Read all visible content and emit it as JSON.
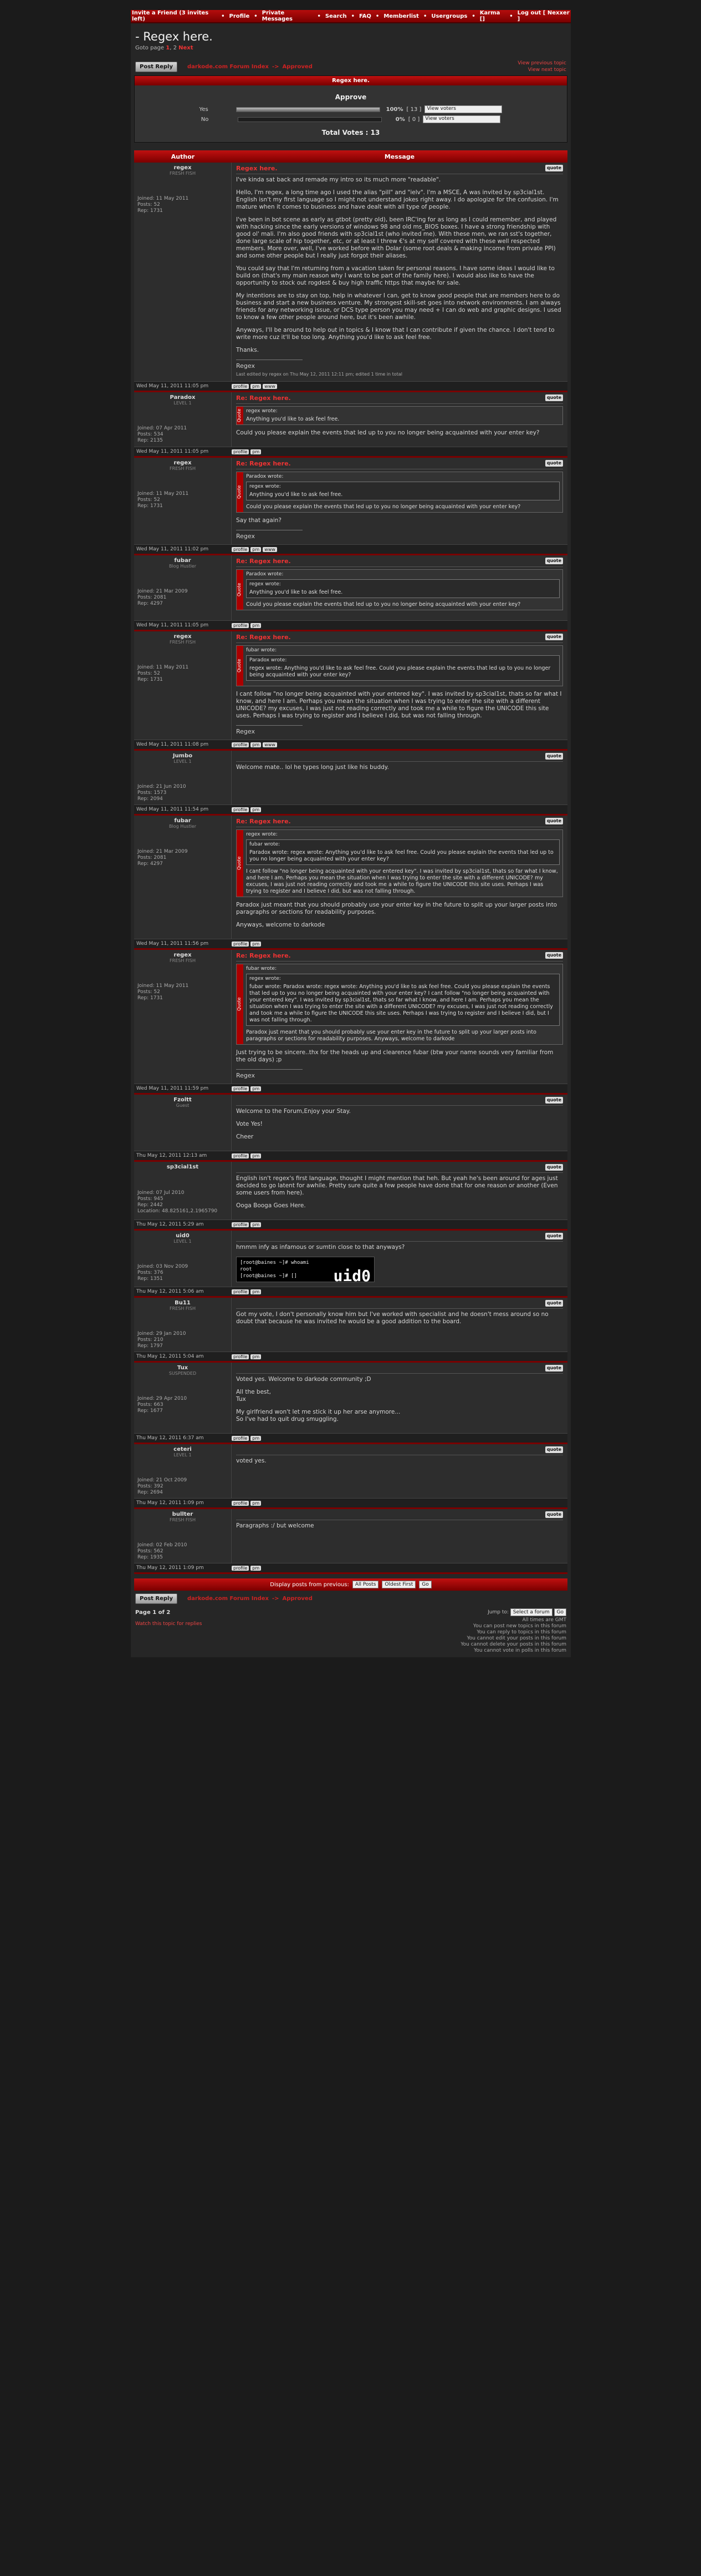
{
  "topbar": [
    "Invite a Friend (3 invites left)",
    "Profile",
    "Private Messages",
    "Search",
    "FAQ",
    "Memberlist",
    "Usergroups",
    "Karma []",
    "Log out [ Nexxer ]"
  ],
  "topic": {
    "title": "- Regex here.",
    "goto": "Goto page",
    "page1": "1",
    "sep": ",",
    "page2": "2",
    "next": "Next"
  },
  "nav": {
    "reply": "Post Reply",
    "crumb1": "darkode.com Forum Index",
    "arrow": "->",
    "crumb2": "Approved",
    "prev": "View previous topic",
    "nextt": "View next topic"
  },
  "poll": {
    "head": "Regex here.",
    "question": "Approve",
    "options": [
      {
        "label": "Yes",
        "fraction": 1.0,
        "pct": "100%",
        "count": "[ 13 ]",
        "view": "View voters"
      },
      {
        "label": "No",
        "fraction": 0,
        "pct": "0%",
        "count": "[ 0 ]",
        "view": "View voters"
      }
    ],
    "total": "Total Votes : 13"
  },
  "cols": {
    "author": "Author",
    "message": "Message"
  },
  "posts": [
    {
      "user": "regex",
      "rank": "FRESH FISH",
      "info": [
        "Joined: 11 May 2011",
        "Posts: 52",
        "Rep: 1731"
      ],
      "title": "Regex here.",
      "date": "Wed May 11, 2011 11:05 pm",
      "paras": [
        "I've kinda sat back and remade my intro so its much more \"readable\".",
        "Hello, I'm regex, a long time ago I used the alias \"pill\" and \"ielv\". I'm a MSCE, A was invited by sp3cial1st. English isn't my first language so I might not understand jokes right away. I do apologize for the confusion. I'm mature when it comes to business and have dealt with all type of people.",
        "I've been in bot scene as early as gtbot (pretty old), been IRC'ing for as long as I could remember, and played with hacking since the early versions of windows 98 and old ms_BIOS boxes. I have a strong friendship with good ol' mali. I'm also good friends with sp3cial1st (who invited me). With these men, we ran sst's together, done large scale of hip together, etc, or at least I threw €'s at my self covered with these well respected members. More over, well, I've worked before with Dolar (some root deals & making income from private PPI) and some other people but I really just forgot their aliases.",
        "You could say that I'm returning from a vacation taken for personal reasons. I have some ideas I would like to build on (that's my main reason why I want to be part of the family here). I would also like to have the opportunity to stock out rogdest & buy high traffic https that maybe for sale.",
        "My intentions are to stay on top, help in whatever I can, get to know good people that are members here to do business and start a new business venture. My strongest skill-set goes into network environments. I am always friends for any networking issue, or DCS type person you may need + I can do web and graphic designs. I used to know a few other people around here, but it's been awhile.",
        "Anyways, I'll be around to help out in topics & I know that I can contribute if given the chance. I don't tend to write more cuz it'll be too long. Anything you'd like to ask feel free.",
        "Thanks."
      ],
      "sig": "Regex",
      "edit": "Last edited by regex on Thu May 12, 2011 12:11 pm; edited 1 time in total"
    },
    {
      "user": "Paradox",
      "rank": "LEVEL 1",
      "info": [
        "Joined: 07 Apr 2011",
        "Posts: 534",
        "Rep: 2135"
      ],
      "title": "Re: Regex here.",
      "date": "Wed May 11, 2011 11:05 pm",
      "quote": {
        "auth": "regex wrote:",
        "text": "Anything you'd like to ask feel free."
      },
      "paras": [
        "Could you please explain the events that led up to you no longer being acquainted with your enter key?"
      ]
    },
    {
      "user": "regex",
      "rank": "FRESH FISH",
      "info": [
        "Joined: 11 May 2011",
        "Posts: 52",
        "Rep: 1731"
      ],
      "title": "Re: Regex here.",
      "date": "Wed May 11, 2011 11:02 pm",
      "quote": {
        "auth": "Paradox wrote:",
        "inner": {
          "auth": "regex wrote:",
          "text": "Anything you'd like to ask feel free."
        },
        "text": "Could you please explain the events that led up to you no longer being acquainted with your enter key?"
      },
      "paras": [
        "Say that again?"
      ],
      "sig": "Regex"
    },
    {
      "user": "fubar",
      "rank": "Blog Hustler",
      "info": [
        "Joined: 21 Mar 2009",
        "Posts: 2081",
        "Rep: 4297"
      ],
      "title": "Re: Regex here.",
      "date": "Wed May 11, 2011 11:05 pm",
      "quote": {
        "auth": "Paradox wrote:",
        "inner": {
          "auth": "regex wrote:",
          "text": "Anything you'd like to ask feel free."
        },
        "text": "Could you please explain the events that led up to you no longer being acquainted with your enter key?"
      },
      "paras": [
        ""
      ]
    },
    {
      "user": "regex",
      "rank": "FRESH FISH",
      "info": [
        "Joined: 11 May 2011",
        "Posts: 52",
        "Rep: 1731"
      ],
      "title": "Re: Regex here.",
      "date": "Wed May 11, 2011 11:08 pm",
      "quote": {
        "auth": "fubar wrote:",
        "inner": {
          "auth": "Paradox wrote:",
          "text": "regex wrote: Anything you'd like to ask feel free. Could you please explain the events that led up to you no longer being acquainted with your enter key?"
        },
        "text": ""
      },
      "paras": [
        "I cant follow \"no longer being acquainted with your entered key\". I was invited by sp3cial1st, thats so far what I know, and here I am. Perhaps you mean the situation when I was trying to enter the site with a different UNICODE? my excuses, I was just not reading correctly and took me a while to figure the UNICODE this site uses. Perhaps I was trying to register and I believe I did, but was not falling through."
      ],
      "sig": "Regex"
    },
    {
      "user": "Jumbo",
      "rank": "LEVEL 1",
      "info": [
        "Joined: 21 Jun 2010",
        "Posts: 1573",
        "Rep: 2094"
      ],
      "title": "",
      "date": "Wed May 11, 2011 11:54 pm",
      "paras": [
        "Welcome mate.. lol he types long just like his buddy."
      ]
    },
    {
      "user": "fubar",
      "rank": "Blog Hustler",
      "info": [
        "Joined: 21 Mar 2009",
        "Posts: 2081",
        "Rep: 4297"
      ],
      "title": "Re: Regex here.",
      "date": "Wed May 11, 2011 11:56 pm",
      "quote": {
        "auth": "regex wrote:",
        "inner": {
          "auth": "fubar wrote:",
          "text": "Paradox wrote: regex wrote: Anything you'd like to ask feel free. Could you please explain the events that led up to you no longer being acquainted with your enter key?"
        },
        "text": "I cant follow \"no longer being acquainted with your entered key\". I was invited by sp3cial1st, thats so far what I know, and here I am. Perhaps you mean the situation when I was trying to enter the site with a different UNICODE? my excuses, I was just not reading correctly and took me a while to figure the UNICODE this site uses. Perhaps I was trying to register and I believe I did, but was not falling through."
      },
      "paras": [
        "Paradox just meant that you should probably use your enter key in the future to split up your larger posts into paragraphs or sections for readability purposes.",
        "Anyways, welcome to darkode"
      ]
    },
    {
      "user": "regex",
      "rank": "FRESH FISH",
      "info": [
        "Joined: 11 May 2011",
        "Posts: 52",
        "Rep: 1731"
      ],
      "title": "Re: Regex here.",
      "date": "Wed May 11, 2011 11:59 pm",
      "quote": {
        "auth": "fubar wrote:",
        "inner": {
          "auth": "regex wrote:",
          "text": "fubar wrote: Paradox wrote: regex wrote: Anything you'd like to ask feel free. Could you please explain the events that led up to you no longer being acquainted with your enter key? I cant follow \"no longer being acquainted with your entered key\". I was invited by sp3cial1st, thats so far what I know, and here I am. Perhaps you mean the situation when I was trying to enter the site with a different UNICODE? my excuses, I was just not reading correctly and took me a while to figure the UNICODE this site uses. Perhaps I was trying to register and I believe I did, but I was not falling through."
        },
        "text": "Paradox just meant that you should probably use your enter key in the future to split up your larger posts into paragraphs or sections for readability purposes. Anyways, welcome to darkode"
      },
      "paras": [
        "Just trying to be sincere..thx for the heads up and clearence fubar (btw your name sounds very familiar from the old days) ;p"
      ],
      "sig": "Regex"
    },
    {
      "user": "Fzoltt",
      "rank": "Guest",
      "info": [],
      "title": "",
      "date": "Thu May 12, 2011 12:13 am",
      "paras": [
        "Welcome to the Forum,Enjoy your Stay.",
        "Vote Yes!",
        "Cheer"
      ]
    },
    {
      "user": "sp3cial1st",
      "rank": "",
      "info": [
        "Joined: 07 Jul 2010",
        "Posts: 945",
        "Rep: 2442",
        "Location: 48.825161,2.1965790"
      ],
      "title": "",
      "date": "Thu May 12, 2011 5:29 am",
      "paras": [
        "English isn't regex's first language, thought I might mention that heh. But yeah he's been around for ages just decided to go latent for awhile. Pretty sure quite a few people have done that for one reason or another (Even some users from here).",
        "Ooga Booga Goes Here."
      ]
    },
    {
      "user": "uid0",
      "rank": "LEVEL 1",
      "info": [
        "Joined: 03 Nov 2009",
        "Posts: 376",
        "Rep: 1351"
      ],
      "title": "",
      "date": "Thu May 12, 2011 5:06 am",
      "paras": [
        "hmmm infy as infamous or sumtin close to that anyways?"
      ],
      "term": [
        "[root@baines ~]# whoami",
        "root",
        "[root@baines ~]# []"
      ],
      "termbig": "uid0"
    },
    {
      "user": "Bu11",
      "rank": "FRESH FISH",
      "info": [
        "Joined: 29 Jan 2010",
        "Posts: 210",
        "Rep: 1797"
      ],
      "title": "",
      "date": "Thu May 12, 2011 5:04 am",
      "paras": [
        "Got my vote, I don't personally know him but I've worked with specialist and he doesn't mess around so no doubt that because he was invited he would be a good addition to the board."
      ]
    },
    {
      "user": "Tux",
      "rank": "SUSPENDED",
      "info": [
        "Joined: 29 Apr 2010",
        "Posts: 663",
        "Rep: 1677"
      ],
      "title": "",
      "date": "Thu May 12, 2011 6:37 am",
      "paras": [
        "Voted yes. Welcome to darkode community ;D",
        "All the best,\nTux",
        "My girlfriend won't let me stick it up her arse anymore...\nSo I've had to quit drug smuggling."
      ]
    },
    {
      "user": "ceteri",
      "rank": "LEVEL 1",
      "info": [
        "Joined: 21 Oct 2009",
        "Posts: 392",
        "Rep: 2694"
      ],
      "title": "",
      "date": "Thu May 12, 2011 1:09 pm",
      "paras": [
        "voted yes."
      ]
    },
    {
      "user": "bullter",
      "rank": "FRESH FISH",
      "info": [
        "Joined: 02 Feb 2010",
        "Posts: 562",
        "Rep: 1935"
      ],
      "title": "",
      "date": "Thu May 12, 2011 1:09 pm",
      "paras": [
        "Paragraphs :/ but welcome"
      ]
    }
  ],
  "bottom": {
    "display": "Display posts from previous:",
    "all": "All Posts",
    "oldest": "Oldest First",
    "go": "Go"
  },
  "footer": {
    "page": "Page 1 of 2",
    "watch": "Watch this topic for replies",
    "jump": "Jump to:",
    "sel": "Select a forum",
    "go": "Go",
    "tz": "All times are GMT",
    "perms": [
      "You can post new topics in this forum",
      "You can reply to topics in this forum",
      "You cannot edit your posts in this forum",
      "You cannot delete your posts in this forum",
      "You cannot vote in polls in this forum"
    ]
  }
}
